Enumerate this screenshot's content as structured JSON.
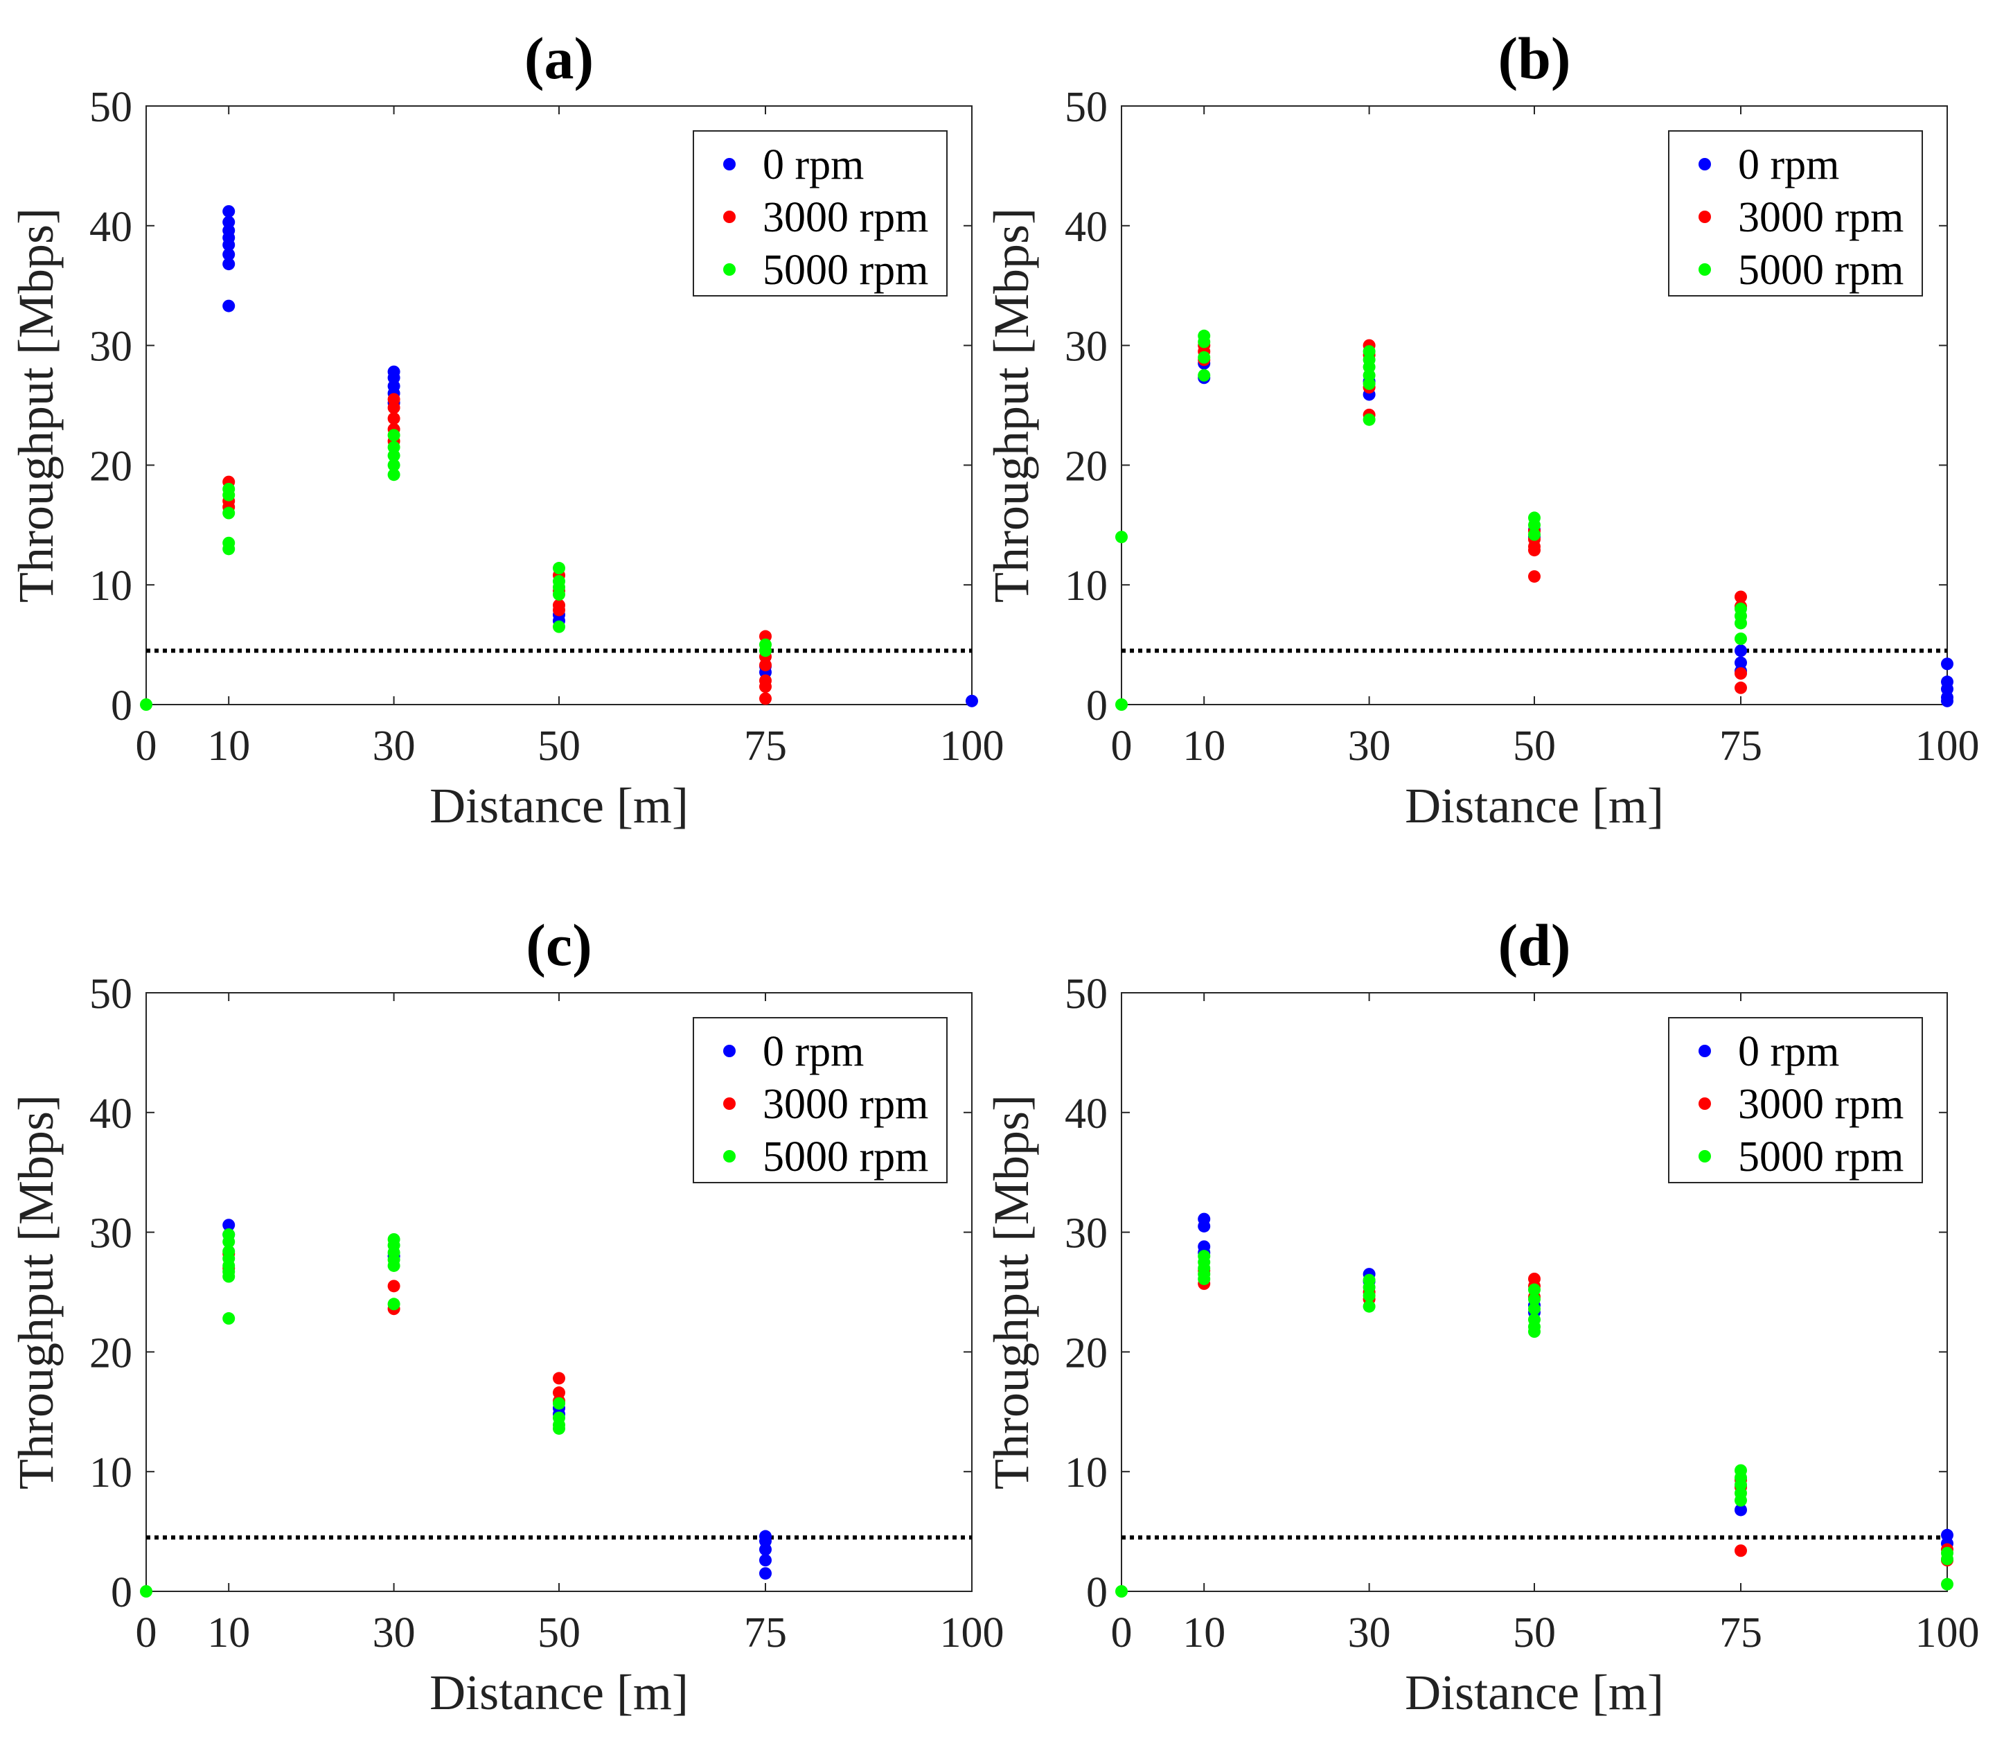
{
  "figure": {
    "background": "#ffffff"
  },
  "colors": {
    "0 rpm": "#0000ff",
    "3000 rpm": "#ff0000",
    "5000 rpm": "#00ff00",
    "threshold": "#000000"
  },
  "chart_data": [
    {
      "type": "scatter",
      "title": "(a)",
      "xlabel": "Distance [m]",
      "ylabel": "Throughput [Mbps]",
      "xlim": [
        0,
        100
      ],
      "ylim": [
        0,
        50
      ],
      "xticks": [
        0,
        10,
        30,
        50,
        75,
        100
      ],
      "yticks": [
        0,
        10,
        20,
        30,
        40,
        50
      ],
      "threshold_y": 4.5,
      "legend": [
        "0 rpm",
        "3000 rpm",
        "5000 rpm"
      ],
      "legend_location": "top-right",
      "series": [
        {
          "name": "0 rpm",
          "points": [
            [
              10,
              41.2
            ],
            [
              10,
              40.3
            ],
            [
              10,
              39.6
            ],
            [
              10,
              39.0
            ],
            [
              10,
              38.4
            ],
            [
              10,
              37.6
            ],
            [
              10,
              36.8
            ],
            [
              10,
              33.3
            ],
            [
              30,
              27.8
            ],
            [
              30,
              27.3
            ],
            [
              30,
              26.6
            ],
            [
              30,
              26.0
            ],
            [
              30,
              25.2
            ],
            [
              50,
              7.5
            ],
            [
              50,
              7.0
            ],
            [
              75,
              3.2
            ],
            [
              75,
              2.7
            ],
            [
              100,
              0.3
            ]
          ]
        },
        {
          "name": "3000 rpm",
          "points": [
            [
              10,
              18.6
            ],
            [
              10,
              17.0
            ],
            [
              10,
              16.5
            ],
            [
              30,
              25.5
            ],
            [
              30,
              24.8
            ],
            [
              30,
              23.9
            ],
            [
              30,
              23.0
            ],
            [
              30,
              22.0
            ],
            [
              50,
              10.8
            ],
            [
              50,
              9.5
            ],
            [
              50,
              8.3
            ],
            [
              50,
              7.9
            ],
            [
              75,
              5.7
            ],
            [
              75,
              4.0
            ],
            [
              75,
              3.3
            ],
            [
              75,
              2.0
            ],
            [
              75,
              1.5
            ],
            [
              75,
              0.5
            ]
          ]
        },
        {
          "name": "5000 rpm",
          "points": [
            [
              0,
              0
            ],
            [
              10,
              18.0
            ],
            [
              10,
              17.5
            ],
            [
              10,
              16.0
            ],
            [
              10,
              13.5
            ],
            [
              10,
              13.0
            ],
            [
              30,
              22.5
            ],
            [
              30,
              21.5
            ],
            [
              30,
              20.8
            ],
            [
              30,
              20.0
            ],
            [
              30,
              19.2
            ],
            [
              50,
              11.4
            ],
            [
              50,
              10.3
            ],
            [
              50,
              9.8
            ],
            [
              50,
              9.2
            ],
            [
              50,
              6.5
            ],
            [
              75,
              5.0
            ],
            [
              75,
              4.5
            ]
          ]
        }
      ]
    },
    {
      "type": "scatter",
      "title": "(b)",
      "xlabel": "Distance [m]",
      "ylabel": "Throughput [Mbps]",
      "xlim": [
        0,
        100
      ],
      "ylim": [
        0,
        50
      ],
      "xticks": [
        0,
        10,
        30,
        50,
        75,
        100
      ],
      "yticks": [
        0,
        10,
        20,
        30,
        40,
        50
      ],
      "threshold_y": 4.5,
      "legend": [
        "0 rpm",
        "3000 rpm",
        "5000 rpm"
      ],
      "legend_location": "top-right",
      "series": [
        {
          "name": "0 rpm",
          "points": [
            [
              10,
              28.5
            ],
            [
              10,
              27.3
            ],
            [
              30,
              27.0
            ],
            [
              30,
              25.9
            ],
            [
              50,
              14.6
            ],
            [
              50,
              14.0
            ],
            [
              75,
              4.5
            ],
            [
              75,
              3.5
            ],
            [
              75,
              2.8
            ],
            [
              100,
              3.4
            ],
            [
              100,
              1.9
            ],
            [
              100,
              1.3
            ],
            [
              100,
              0.6
            ],
            [
              100,
              0.3
            ]
          ]
        },
        {
          "name": "3000 rpm",
          "points": [
            [
              10,
              30.0
            ],
            [
              10,
              29.5
            ],
            [
              10,
              28.8
            ],
            [
              30,
              30.0
            ],
            [
              30,
              29.2
            ],
            [
              30,
              26.5
            ],
            [
              30,
              24.2
            ],
            [
              50,
              14.5
            ],
            [
              50,
              13.8
            ],
            [
              50,
              13.2
            ],
            [
              50,
              12.9
            ],
            [
              50,
              10.7
            ],
            [
              75,
              9.0
            ],
            [
              75,
              8.2
            ],
            [
              75,
              2.6
            ],
            [
              75,
              1.4
            ]
          ]
        },
        {
          "name": "5000 rpm",
          "points": [
            [
              0,
              14.0
            ],
            [
              0,
              0
            ],
            [
              10,
              30.8
            ],
            [
              10,
              30.3
            ],
            [
              10,
              29.0
            ],
            [
              10,
              27.5
            ],
            [
              30,
              29.5
            ],
            [
              30,
              28.8
            ],
            [
              30,
              28.2
            ],
            [
              30,
              27.5
            ],
            [
              30,
              26.8
            ],
            [
              30,
              23.8
            ],
            [
              50,
              15.6
            ],
            [
              50,
              15.0
            ],
            [
              50,
              14.2
            ],
            [
              75,
              8.0
            ],
            [
              75,
              7.4
            ],
            [
              75,
              6.8
            ],
            [
              75,
              5.5
            ]
          ]
        }
      ]
    },
    {
      "type": "scatter",
      "title": "(c)",
      "xlabel": "Distance [m]",
      "ylabel": "Throughput [Mbps]",
      "xlim": [
        0,
        100
      ],
      "ylim": [
        0,
        50
      ],
      "xticks": [
        0,
        10,
        30,
        50,
        75,
        100
      ],
      "yticks": [
        0,
        10,
        20,
        30,
        40,
        50
      ],
      "threshold_y": 4.5,
      "legend": [
        "0 rpm",
        "3000 rpm",
        "5000 rpm"
      ],
      "legend_location": "top-right",
      "series": [
        {
          "name": "0 rpm",
          "points": [
            [
              10,
              30.6
            ],
            [
              10,
              29.8
            ],
            [
              30,
              28.0
            ],
            [
              50,
              15.3
            ],
            [
              50,
              14.8
            ],
            [
              75,
              4.6
            ],
            [
              75,
              4.2
            ],
            [
              75,
              3.5
            ],
            [
              75,
              2.6
            ],
            [
              75,
              1.5
            ]
          ]
        },
        {
          "name": "3000 rpm",
          "points": [
            [
              10,
              28.2
            ],
            [
              10,
              27.0
            ],
            [
              30,
              25.5
            ],
            [
              30,
              23.6
            ],
            [
              50,
              17.8
            ],
            [
              50,
              16.6
            ],
            [
              50,
              15.9
            ]
          ]
        },
        {
          "name": "5000 rpm",
          "points": [
            [
              0,
              0
            ],
            [
              10,
              29.8
            ],
            [
              10,
              29.2
            ],
            [
              10,
              28.4
            ],
            [
              10,
              27.8
            ],
            [
              10,
              27.2
            ],
            [
              10,
              26.7
            ],
            [
              10,
              26.3
            ],
            [
              10,
              22.8
            ],
            [
              30,
              29.4
            ],
            [
              30,
              28.9
            ],
            [
              30,
              28.3
            ],
            [
              30,
              27.7
            ],
            [
              30,
              27.2
            ],
            [
              30,
              24.0
            ],
            [
              50,
              15.7
            ],
            [
              50,
              14.5
            ],
            [
              50,
              13.9
            ],
            [
              50,
              13.6
            ]
          ]
        }
      ]
    },
    {
      "type": "scatter",
      "title": "(d)",
      "xlabel": "Distance [m]",
      "ylabel": "Throughput [Mbps]",
      "xlim": [
        0,
        100
      ],
      "ylim": [
        0,
        50
      ],
      "xticks": [
        0,
        10,
        30,
        50,
        75,
        100
      ],
      "yticks": [
        0,
        10,
        20,
        30,
        40,
        50
      ],
      "threshold_y": 4.5,
      "legend": [
        "0 rpm",
        "3000 rpm",
        "5000 rpm"
      ],
      "legend_location": "top-right",
      "series": [
        {
          "name": "0 rpm",
          "points": [
            [
              10,
              31.1
            ],
            [
              10,
              30.5
            ],
            [
              10,
              28.8
            ],
            [
              10,
              28.3
            ],
            [
              30,
              26.5
            ],
            [
              30,
              25.9
            ],
            [
              50,
              23.9
            ],
            [
              50,
              23.3
            ],
            [
              75,
              6.8
            ],
            [
              100,
              4.7
            ],
            [
              100,
              4.0
            ]
          ]
        },
        {
          "name": "3000 rpm",
          "points": [
            [
              10,
              26.8
            ],
            [
              10,
              25.7
            ],
            [
              30,
              25.0
            ],
            [
              30,
              24.4
            ],
            [
              50,
              26.1
            ],
            [
              50,
              25.5
            ],
            [
              50,
              24.6
            ],
            [
              75,
              9.3
            ],
            [
              75,
              8.7
            ],
            [
              75,
              3.4
            ],
            [
              100,
              3.5
            ],
            [
              100,
              2.6
            ]
          ]
        },
        {
          "name": "5000 rpm",
          "points": [
            [
              0,
              0
            ],
            [
              10,
              28.0
            ],
            [
              10,
              27.5
            ],
            [
              10,
              27.0
            ],
            [
              10,
              26.5
            ],
            [
              10,
              26.1
            ],
            [
              30,
              26.0
            ],
            [
              30,
              25.4
            ],
            [
              30,
              24.7
            ],
            [
              30,
              23.8
            ],
            [
              50,
              25.2
            ],
            [
              50,
              24.4
            ],
            [
              50,
              23.6
            ],
            [
              50,
              22.7
            ],
            [
              50,
              22.1
            ],
            [
              50,
              21.7
            ],
            [
              75,
              10.1
            ],
            [
              75,
              9.5
            ],
            [
              75,
              8.9
            ],
            [
              75,
              8.2
            ],
            [
              75,
              7.6
            ],
            [
              100,
              3.2
            ],
            [
              100,
              2.7
            ],
            [
              100,
              0.6
            ]
          ]
        }
      ]
    }
  ]
}
